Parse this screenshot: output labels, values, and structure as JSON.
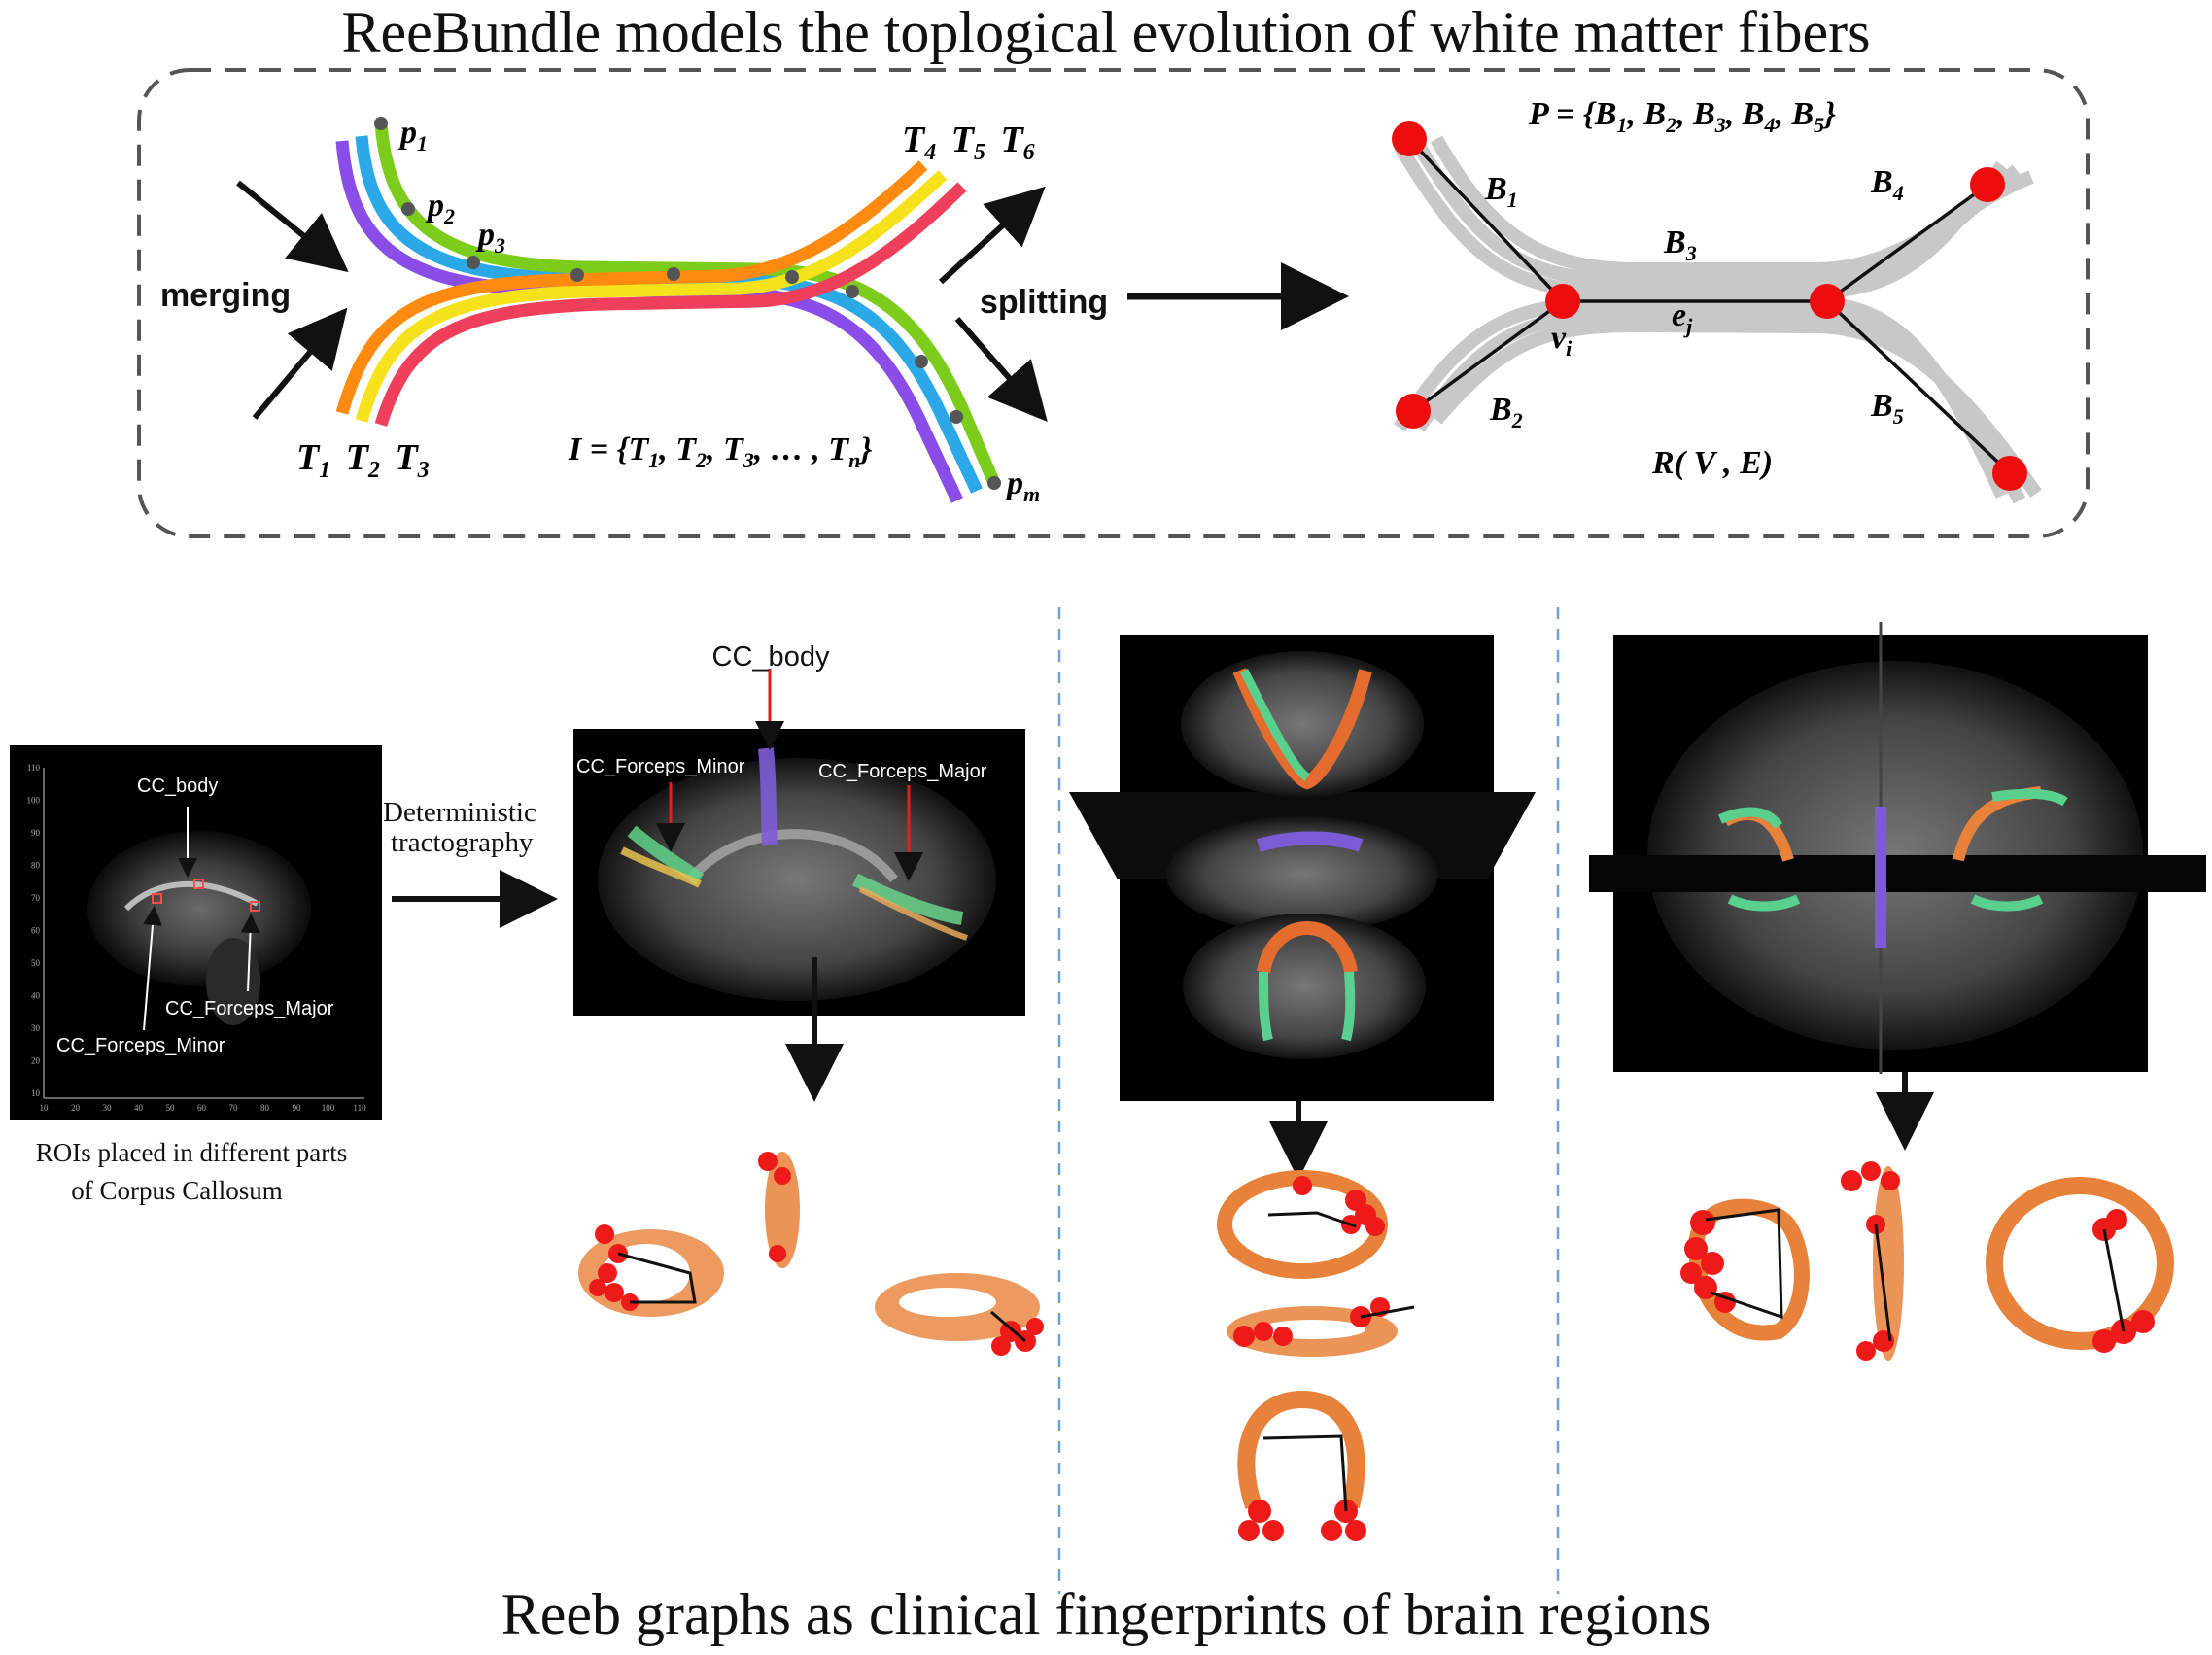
{
  "titles": {
    "top": "ReeBundle models the toplogical evolution of white matter fibers",
    "bottom": "Reeb graphs as clinical fingerprints of brain regions"
  },
  "upper_panel": {
    "merging": "merging",
    "splitting": "splitting",
    "points": {
      "p1": "p",
      "p1_sub": "1",
      "p2": "p",
      "p2_sub": "2",
      "p3": "p",
      "p3_sub": "3",
      "pm": "p",
      "pm_sub": "m"
    },
    "t_left": {
      "t1": "T",
      "t1_sub": "1",
      "t2": "T",
      "t2_sub": "2",
      "t3": "T",
      "t3_sub": "3"
    },
    "t_right": {
      "t4": "T",
      "t4_sub": "4",
      "t5": "T",
      "t5_sub": "5",
      "t6": "T",
      "t6_sub": "6"
    },
    "set_I": {
      "lhs": "I = {T",
      "s1": "1",
      "c1": ", T",
      "s2": "2",
      "c2": ", T",
      "s3": "3",
      "c3": ", … , T",
      "sn": "n",
      "end": "}"
    },
    "set_P": {
      "lhs": "P = {B",
      "s1": "1",
      "c1": ", B",
      "s2": "2",
      "c2": ", B",
      "s3": "3",
      "c3": ", B",
      "s4": "4",
      "c4": ", B",
      "s5": "5",
      "end": "}"
    },
    "bundles": {
      "b": "B",
      "b1": "1",
      "b2": "2",
      "b3": "3",
      "b4": "4",
      "b5": "5"
    },
    "vertex": {
      "v": "v",
      "v_sub": "i"
    },
    "edge": {
      "e": "e",
      "e_sub": "j"
    },
    "reeb": "R( V , E)",
    "fiber_colors": [
      "#8a4de8",
      "#2aa8e8",
      "#7ccc1c",
      "#ff8a10",
      "#f6e21a",
      "#ef3f5a"
    ]
  },
  "roi_panel": {
    "labels": {
      "body": "CC_body",
      "major": "CC_Forceps_Major",
      "minor": "CC_Forceps_Minor"
    },
    "y_ticks": [
      "110",
      "100",
      "90",
      "80",
      "70",
      "60",
      "50",
      "40",
      "30",
      "20",
      "10"
    ],
    "x_ticks": [
      "10",
      "20",
      "30",
      "40",
      "50",
      "60",
      "70",
      "80",
      "90",
      "100",
      "110"
    ],
    "caption_line1": "ROIs placed in different parts",
    "caption_line2": "of Corpus Callosum",
    "arrow_line1": "Deterministic",
    "arrow_line2": "tractography"
  },
  "tract_panel": {
    "labels": {
      "body": "CC_body",
      "minor": "CC_Forceps_Minor",
      "major": "CC_Forceps_Major"
    }
  }
}
